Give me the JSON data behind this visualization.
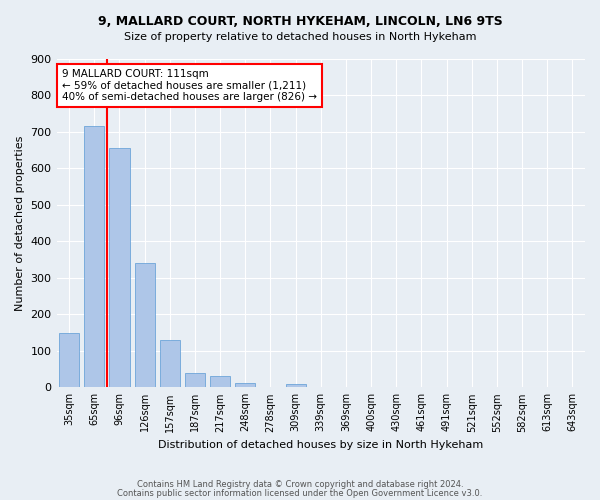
{
  "title1": "9, MALLARD COURT, NORTH HYKEHAM, LINCOLN, LN6 9TS",
  "title2": "Size of property relative to detached houses in North Hykeham",
  "xlabel": "Distribution of detached houses by size in North Hykeham",
  "ylabel": "Number of detached properties",
  "footer1": "Contains HM Land Registry data © Crown copyright and database right 2024.",
  "footer2": "Contains public sector information licensed under the Open Government Licence v3.0.",
  "categories": [
    "35sqm",
    "65sqm",
    "96sqm",
    "126sqm",
    "157sqm",
    "187sqm",
    "217sqm",
    "248sqm",
    "278sqm",
    "309sqm",
    "339sqm",
    "369sqm",
    "400sqm",
    "430sqm",
    "461sqm",
    "491sqm",
    "521sqm",
    "552sqm",
    "582sqm",
    "613sqm",
    "643sqm"
  ],
  "values": [
    150,
    715,
    655,
    340,
    130,
    40,
    30,
    12,
    0,
    10,
    0,
    0,
    0,
    0,
    0,
    0,
    0,
    0,
    0,
    0,
    0
  ],
  "bar_color": "#aec6e8",
  "bar_edgecolor": "#5b9bd5",
  "bg_color": "#e8eef4",
  "grid_color": "#d0d8e4",
  "annotation_line1": "9 MALLARD COURT: 111sqm",
  "annotation_line2": "← 59% of detached houses are smaller (1,211)",
  "annotation_line3": "40% of semi-detached houses are larger (826) →",
  "redline_x": 1.5,
  "ylim": [
    0,
    900
  ],
  "yticks": [
    0,
    100,
    200,
    300,
    400,
    500,
    600,
    700,
    800,
    900
  ]
}
